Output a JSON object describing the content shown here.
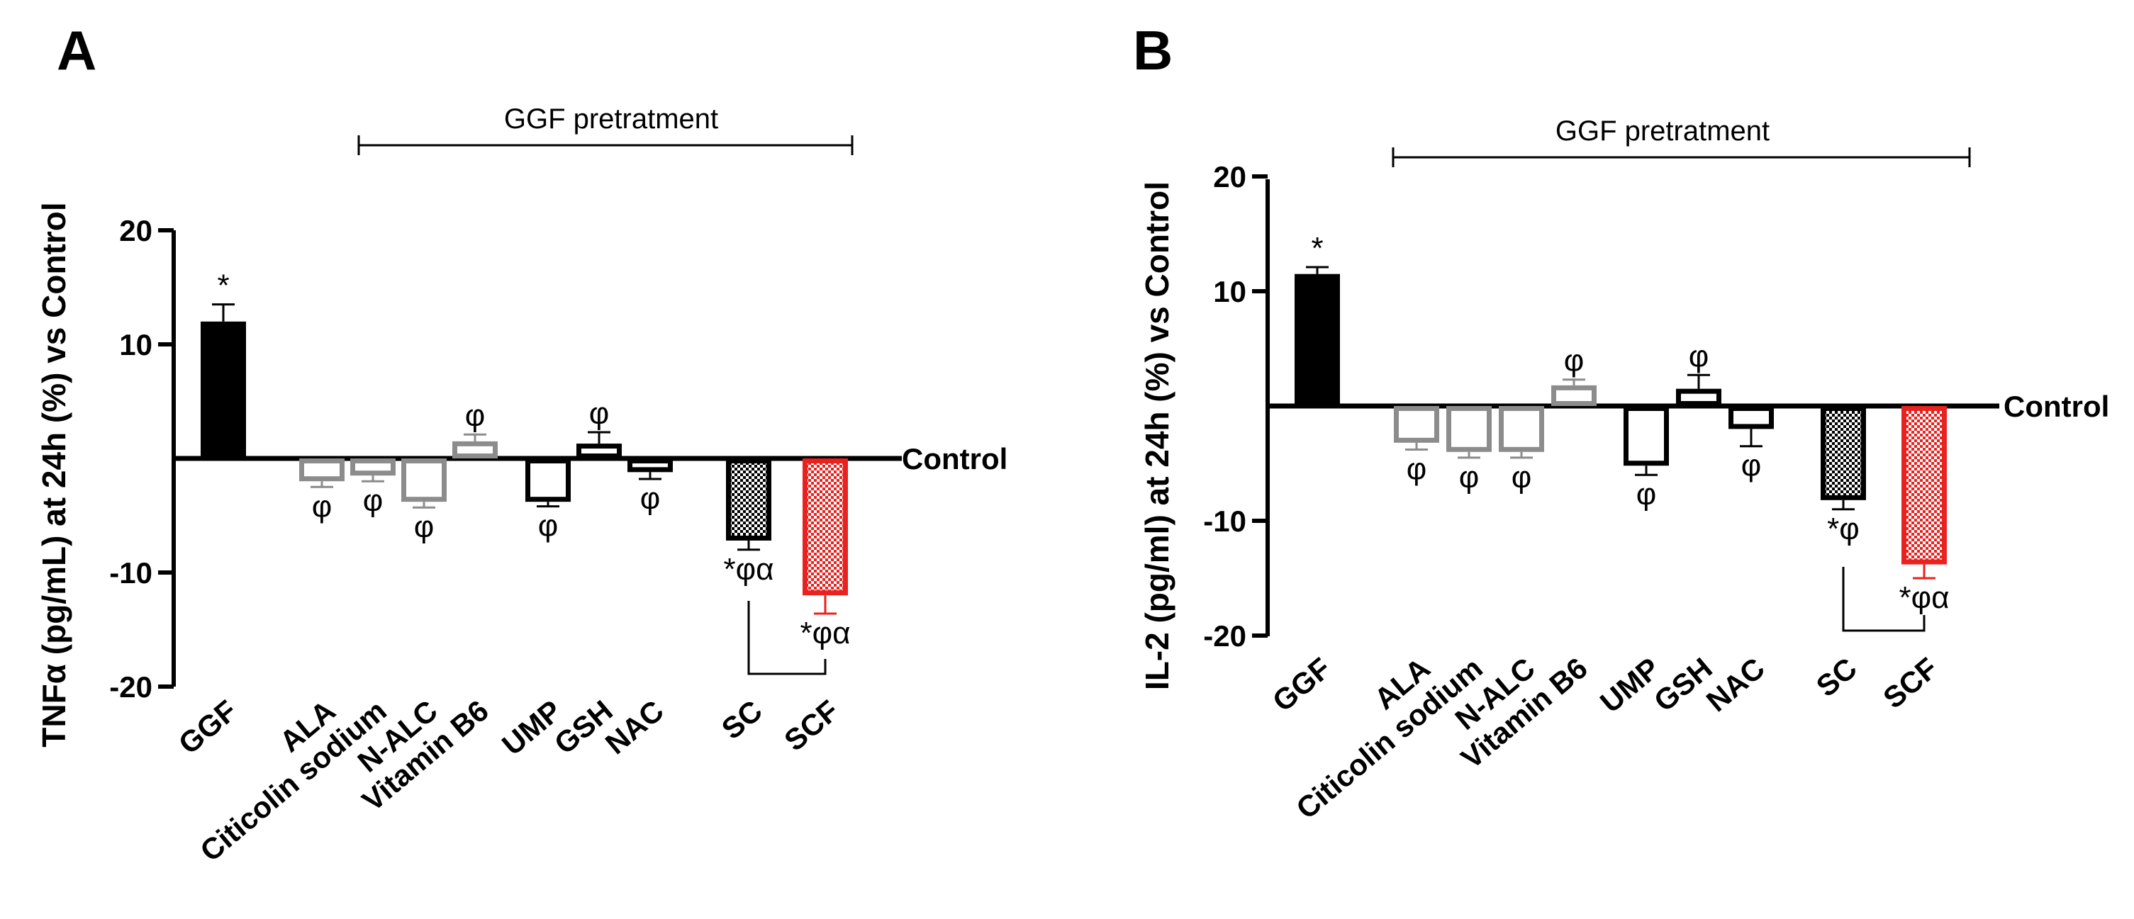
{
  "colors": {
    "black": "#000000",
    "gray": "#8c8c8c",
    "red": "#e8221e"
  },
  "chart_data": [
    {
      "panel": "A",
      "type": "bar",
      "ylabel": "TNFα (pg/mL) at 24h (%) vs Control",
      "xlabel": "",
      "ylim": [
        -20,
        20
      ],
      "yticks": [
        20,
        10,
        -10,
        -20
      ],
      "baseline_label": "Control",
      "bracket_label": "GGF pretratment",
      "categories": [
        "GGF",
        "ALA",
        "Citicolin sodium",
        "N-ALC",
        "Vitamin B6",
        "UMP",
        "GSH",
        "NAC",
        "SC",
        "SCF"
      ],
      "values": [
        12,
        -2,
        -1.5,
        -3.8,
        1.5,
        -3.8,
        1.3,
        -1.2,
        -7.2,
        -12
      ],
      "errors": [
        1.5,
        0.5,
        0.5,
        0.5,
        0.6,
        0.4,
        1.0,
        0.6,
        0.8,
        1.6
      ],
      "styles": [
        "solid-black",
        "outline-gray",
        "outline-gray",
        "outline-gray",
        "outline-gray",
        "outline-black",
        "outline-black",
        "outline-black",
        "pattern-black",
        "pattern-red"
      ],
      "annotations": [
        "*",
        "φ",
        "φ",
        "φ",
        "φ",
        "φ",
        "φ",
        "φ",
        "*φα",
        "*φα"
      ],
      "comparison": [
        "SC",
        "SCF"
      ]
    },
    {
      "panel": "B",
      "type": "bar",
      "ylabel": "IL-2 (pg/ml) at 24h (%) vs Control",
      "xlabel": "",
      "ylim": [
        -20,
        20
      ],
      "yticks": [
        20,
        10,
        -10,
        -20
      ],
      "baseline_label": "Control",
      "bracket_label": "GGF pretratment",
      "categories": [
        "GGF",
        "ALA",
        "Citicolin sodium",
        "N-ALC",
        "Vitamin B6",
        "UMP",
        "GSH",
        "NAC",
        "SC",
        "SCF"
      ],
      "values": [
        11.5,
        -3.2,
        -4,
        -4,
        1.8,
        -5.2,
        1.5,
        -2,
        -8.2,
        -13.8
      ],
      "errors": [
        0.6,
        0.6,
        0.5,
        0.5,
        0.5,
        0.8,
        1.2,
        1.5,
        0.8,
        1.2
      ],
      "styles": [
        "solid-black",
        "outline-gray",
        "outline-gray",
        "outline-gray",
        "outline-gray",
        "outline-black",
        "outline-black",
        "outline-black",
        "pattern-black",
        "pattern-red"
      ],
      "annotations": [
        "*",
        "φ",
        "φ",
        "φ",
        "φ",
        "φ",
        "φ",
        "φ",
        "*φ",
        "*φα"
      ],
      "comparison": [
        "SC",
        "SCF"
      ]
    }
  ]
}
